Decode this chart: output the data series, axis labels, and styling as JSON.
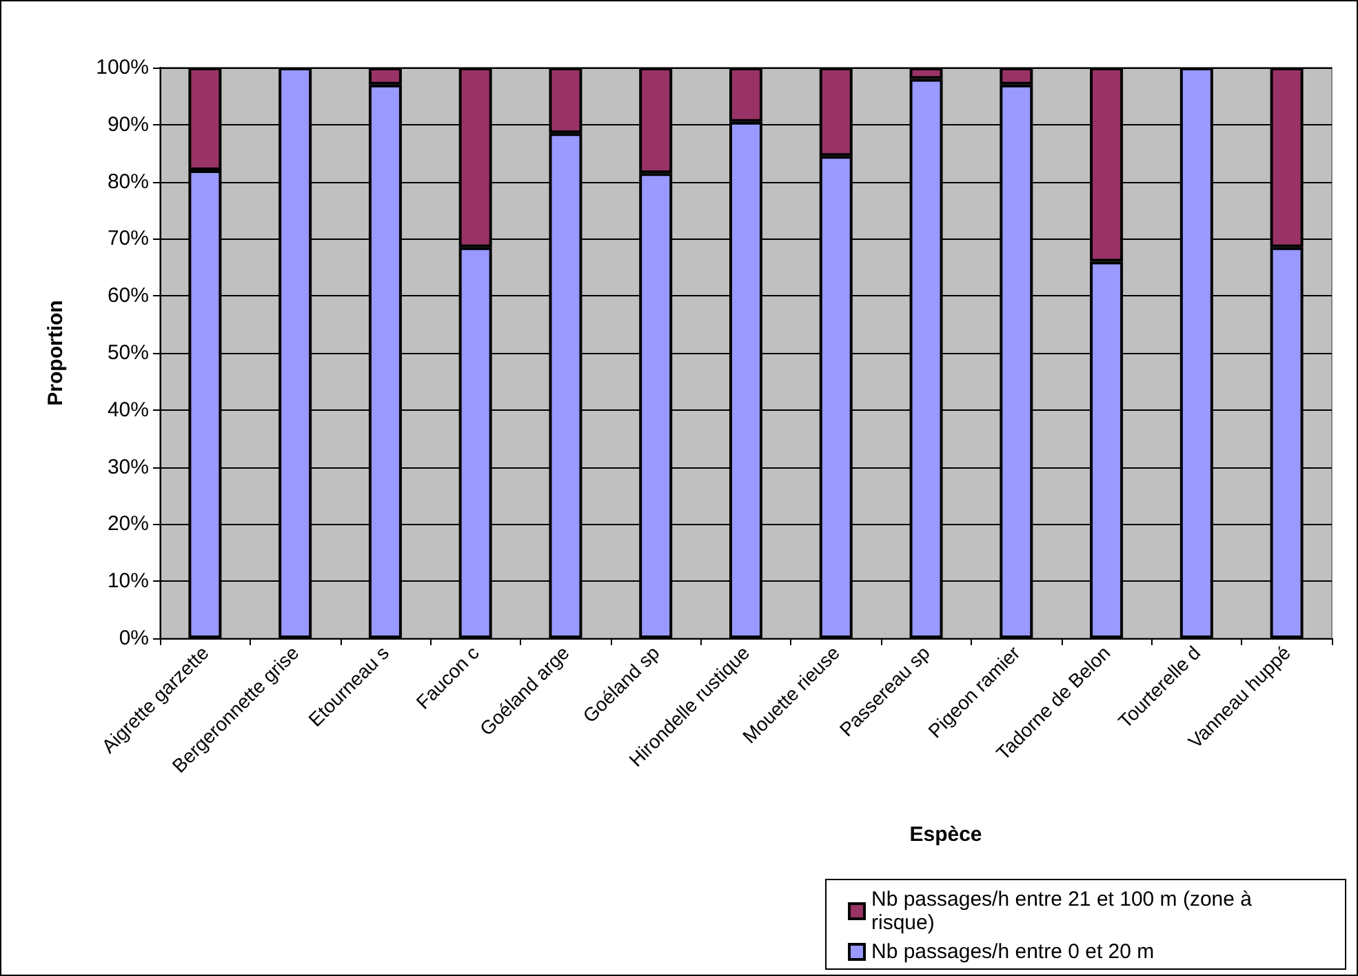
{
  "chart_data": {
    "type": "bar",
    "stacked": true,
    "xlabel": "Espèce",
    "ylabel": "Proportion",
    "categories": [
      "Aigrette garzette",
      "Bergeronnette grise",
      "Etourneau s",
      "Faucon c",
      "Goéland arge",
      "Goéland sp",
      "Hirondelle rustique",
      "Mouette rieuse",
      "Passereau sp",
      "Pigeon ramier",
      "Tadorne de Belon",
      "Tourterelle d",
      "Vanneau huppé"
    ],
    "series": [
      {
        "name": "Nb passages/h entre 0 et 20 m",
        "color": "#9999ff",
        "values": [
          82,
          100,
          97,
          68.5,
          88.5,
          81.5,
          90.5,
          84.5,
          98,
          97,
          66,
          100,
          68.5
        ]
      },
      {
        "name": "Nb passages/h entre 21 et 100 m (zone à risque)",
        "color": "#993366",
        "values": [
          18,
          0,
          3,
          31.5,
          11.5,
          18.5,
          9.5,
          15.5,
          2,
          3,
          34,
          0,
          31.5
        ]
      }
    ],
    "ylim": [
      0,
      100
    ],
    "yticks": [
      {
        "value": 0,
        "label": "0%"
      },
      {
        "value": 10,
        "label": "10%"
      },
      {
        "value": 20,
        "label": "20%"
      },
      {
        "value": 30,
        "label": "30%"
      },
      {
        "value": 40,
        "label": "40%"
      },
      {
        "value": 50,
        "label": "50%"
      },
      {
        "value": 60,
        "label": "60%"
      },
      {
        "value": 70,
        "label": "70%"
      },
      {
        "value": 80,
        "label": "80%"
      },
      {
        "value": 90,
        "label": "90%"
      },
      {
        "value": 100,
        "label": "100%"
      }
    ],
    "grid": "y",
    "legend": "bottom right"
  }
}
